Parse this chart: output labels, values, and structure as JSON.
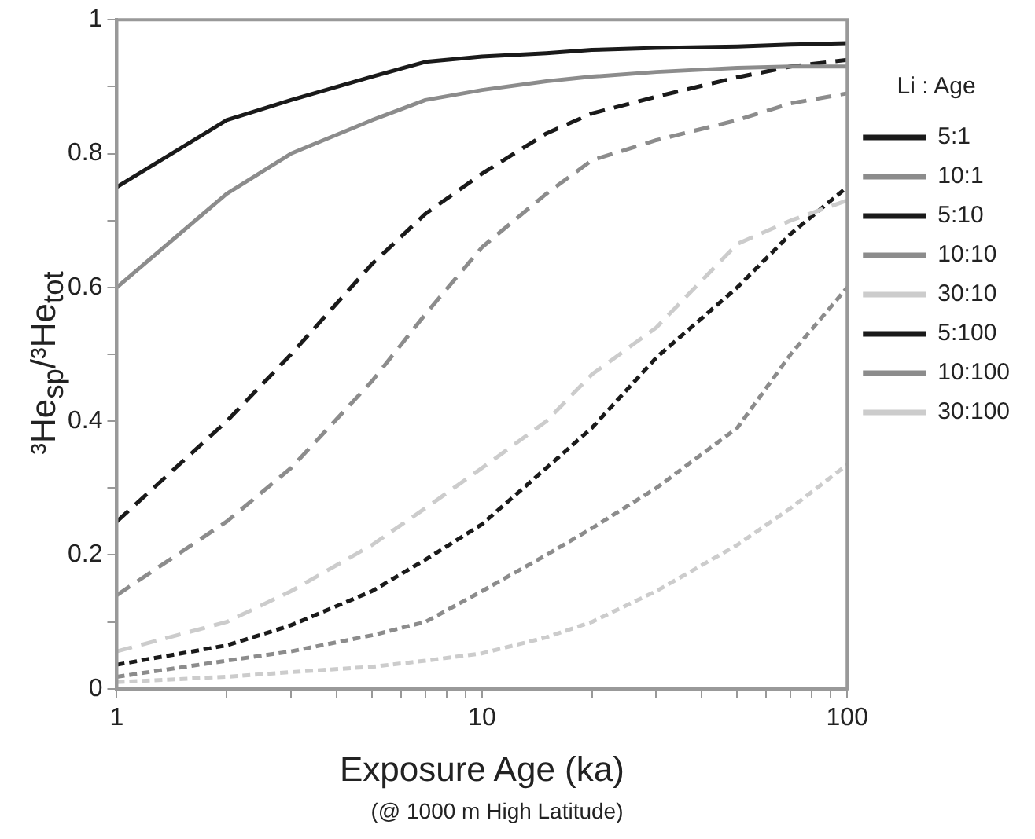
{
  "chart_data": {
    "type": "line",
    "xlabel": "Exposure Age (ka)",
    "ylabel": "³He$_{sp}$/³He$_{tot}$",
    "legend_title": "Li : Age",
    "annotations": [
      "(@ 1000 m High Latitude)"
    ],
    "x": [
      1,
      2,
      3,
      5,
      7,
      10,
      15,
      20,
      30,
      50,
      70,
      100
    ],
    "log": "x",
    "xlim": [
      1,
      100
    ],
    "xticks": [
      1,
      {
        "value": 2,
        "label": null
      },
      {
        "value": 3,
        "label": null
      },
      {
        "value": 4,
        "label": null
      },
      {
        "value": 5,
        "label": null
      },
      {
        "value": 6,
        "label": null
      },
      {
        "value": 7,
        "label": null
      },
      {
        "value": 8,
        "label": null
      },
      {
        "value": 9,
        "label": null
      },
      10,
      {
        "value": 20,
        "label": null
      },
      {
        "value": 30,
        "label": null
      },
      {
        "value": 40,
        "label": null
      },
      {
        "value": 50,
        "label": null
      },
      {
        "value": 60,
        "label": null
      },
      {
        "value": 70,
        "label": null
      },
      {
        "value": 80,
        "label": null
      },
      {
        "value": 90,
        "label": null
      },
      100
    ],
    "ylim": [
      0,
      1
    ],
    "yticks": [
      0,
      {
        "value": 0.1,
        "label": null
      },
      0.2,
      {
        "value": 0.3,
        "label": null
      },
      0.4,
      {
        "value": 0.5,
        "label": null
      },
      0.6,
      {
        "value": 0.7,
        "label": null
      },
      0.8,
      {
        "value": 0.9,
        "label": null
      },
      1
    ],
    "grid": false,
    "legend": "right",
    "marker": "none",
    "series": [
      {
        "name": "5:1",
        "color": "#1a1a1a",
        "line_style": "solid",
        "values": [
          0.75,
          0.85,
          0.88,
          0.915,
          0.937,
          0.945,
          0.95,
          0.955,
          0.958,
          0.96,
          0.963,
          0.965
        ]
      },
      {
        "name": "10:1",
        "color": "#8c8c8c",
        "line_style": "solid",
        "values": [
          0.6,
          0.74,
          0.8,
          0.85,
          0.88,
          0.895,
          0.908,
          0.915,
          0.922,
          0.928,
          0.93,
          0.93
        ]
      },
      {
        "name": "5:10",
        "color": "#1a1a1a",
        "line_style": "dashed",
        "values": [
          0.25,
          0.4,
          0.5,
          0.635,
          0.71,
          0.77,
          0.83,
          0.86,
          0.885,
          0.914,
          0.93,
          0.94
        ]
      },
      {
        "name": "10:10",
        "color": "#8c8c8c",
        "line_style": "dashed",
        "values": [
          0.14,
          0.25,
          0.33,
          0.46,
          0.56,
          0.66,
          0.74,
          0.79,
          0.82,
          0.85,
          0.875,
          0.89
        ]
      },
      {
        "name": "30:10",
        "color": "#cccccc",
        "line_style": "dashed",
        "values": [
          0.056,
          0.1,
          0.146,
          0.215,
          0.27,
          0.33,
          0.4,
          0.47,
          0.54,
          0.665,
          0.7,
          0.73
        ]
      },
      {
        "name": "5:100",
        "color": "#1a1a1a",
        "line_style": "dotted",
        "values": [
          0.036,
          0.065,
          0.095,
          0.146,
          0.193,
          0.246,
          0.33,
          0.39,
          0.495,
          0.6,
          0.68,
          0.75
        ]
      },
      {
        "name": "10:100",
        "color": "#8c8c8c",
        "line_style": "dotted",
        "values": [
          0.018,
          0.042,
          0.056,
          0.08,
          0.1,
          0.146,
          0.2,
          0.24,
          0.3,
          0.39,
          0.5,
          0.6
        ]
      },
      {
        "name": "30:100",
        "color": "#cccccc",
        "line_style": "dotted",
        "values": [
          0.01,
          0.018,
          0.025,
          0.033,
          0.042,
          0.053,
          0.077,
          0.1,
          0.146,
          0.215,
          0.27,
          0.335
        ]
      }
    ]
  }
}
